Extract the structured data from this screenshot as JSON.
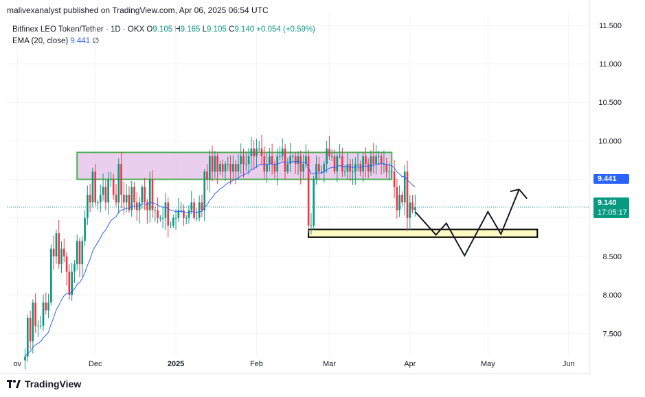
{
  "header": {
    "publish_line": "malivexanalyst published on TradingView.com, Apr 06, 2025 06:54 UTC"
  },
  "legend": {
    "symbol": "Bitfinex LEO Token/Tether · 1D · OKX",
    "open_label": "O",
    "open": "9.105",
    "high_label": "H",
    "high": "9.165",
    "low_label": "L",
    "low": "9.105",
    "close_label": "C",
    "close": "9.140",
    "change": "+0.054 (+0.59%)",
    "ema_label": "EMA (20, close)",
    "ema_value": "9.441",
    "ema_extra": "∅"
  },
  "price_tags": {
    "ema": "9.441",
    "last_price": "9.140",
    "countdown": "17:05:17"
  },
  "footer": {
    "brand": "TradingView"
  },
  "colors": {
    "up": "#089981",
    "down": "#f23645",
    "ema": "#2962ff",
    "zone_top_fill": "#e1bee7",
    "zone_top_border": "#4caf50",
    "zone_bottom_fill": "#fff9c4",
    "zone_bottom_border": "#000000"
  },
  "chart_data": {
    "type": "candlestick",
    "y_axis": {
      "min": 7.2,
      "max": 11.65,
      "ticks": [
        7.5,
        8.0,
        8.5,
        9.0,
        9.5,
        10.0,
        10.5,
        11.0,
        11.5
      ],
      "tick_labels": [
        "7.500",
        "8.000",
        "8.500",
        "",
        "",
        "10.000",
        "10.500",
        "11.000",
        "11.500"
      ]
    },
    "x_axis": {
      "start": "2024-10-28",
      "end": "2025-06-09",
      "ticks": [
        {
          "date": "2024-11-01",
          "label": "ov"
        },
        {
          "date": "2024-12-01",
          "label": "Dec"
        },
        {
          "date": "2025-01-01",
          "label": "2025",
          "bold": true
        },
        {
          "date": "2025-02-01",
          "label": "Feb"
        },
        {
          "date": "2025-03-01",
          "label": "Mar"
        },
        {
          "date": "2025-04-01",
          "label": "Apr"
        },
        {
          "date": "2025-05-01",
          "label": "May"
        },
        {
          "date": "2025-06-01",
          "label": "Jun"
        }
      ]
    },
    "candles_first_date": "2024-11-04",
    "closes": [
      7.2,
      7.7,
      7.4,
      7.9,
      7.6,
      7.6,
      7.6,
      7.9,
      7.8,
      7.9,
      8.6,
      8.5,
      8.8,
      8.4,
      8.6,
      8.5,
      8.3,
      8.0,
      8.3,
      8.4,
      8.7,
      8.4,
      8.7,
      9.0,
      9.3,
      9.2,
      9.6,
      9.2,
      9.2,
      9.3,
      9.4,
      9.2,
      9.5,
      9.5,
      9.3,
      9.2,
      9.7,
      9.3,
      9.2,
      9.3,
      9.1,
      9.4,
      9.2,
      9.1,
      9.2,
      9.4,
      9.2,
      9.1,
      9.5,
      9.1,
      9.1,
      9.0,
      9.0,
      9.0,
      9.2,
      8.9,
      8.9,
      9.0,
      9.0,
      9.1,
      9.1,
      9.0,
      9.0,
      9.1,
      9.2,
      9.0,
      9.0,
      9.2,
      9.1,
      9.6,
      9.5,
      9.8,
      9.6,
      9.8,
      9.6,
      9.7,
      9.6,
      9.7,
      9.7,
      9.6,
      9.7,
      9.6,
      9.7,
      9.8,
      9.7,
      9.7,
      9.8,
      9.9,
      9.8,
      9.9,
      9.9,
      9.8,
      9.6,
      9.7,
      9.8,
      9.7,
      9.6,
      9.8,
      9.8,
      9.9,
      9.6,
      9.7,
      9.8,
      9.8,
      9.7,
      9.8,
      9.6,
      9.7,
      9.8,
      8.9,
      8.9,
      9.5,
      9.7,
      9.6,
      9.6,
      9.7,
      9.9,
      9.8,
      9.8,
      9.6,
      9.8,
      9.8,
      9.6,
      9.6,
      9.7,
      9.6,
      9.6,
      9.7,
      9.7,
      9.6,
      9.8,
      9.7,
      9.6,
      9.8,
      9.7,
      9.8,
      9.8,
      9.7,
      9.7,
      9.6,
      9.6,
      9.6,
      9.4,
      9.1,
      9.3,
      9.2,
      9.6,
      9.0,
      9.2,
      9.1,
      9.14
    ],
    "ema_20_end_value": 9.441,
    "zones": [
      {
        "name": "resistance-zone",
        "from": "2024-11-24",
        "to": "2025-03-25",
        "low": 9.5,
        "high": 9.85
      },
      {
        "name": "support-zone",
        "from": "2025-02-21",
        "to": "2025-05-20",
        "low": 8.75,
        "high": 8.85
      }
    ],
    "projection": [
      {
        "date": "2025-04-03",
        "value": 9.08
      },
      {
        "date": "2025-04-11",
        "value": 8.78
      },
      {
        "date": "2025-04-15",
        "value": 8.93
      },
      {
        "date": "2025-04-22",
        "value": 8.51
      },
      {
        "date": "2025-05-01",
        "value": 9.08
      },
      {
        "date": "2025-05-06",
        "value": 8.79
      },
      {
        "date": "2025-05-13",
        "value": 9.37
      },
      {
        "date": "2025-05-16",
        "value": 9.25
      }
    ],
    "last_price": 9.14
  }
}
